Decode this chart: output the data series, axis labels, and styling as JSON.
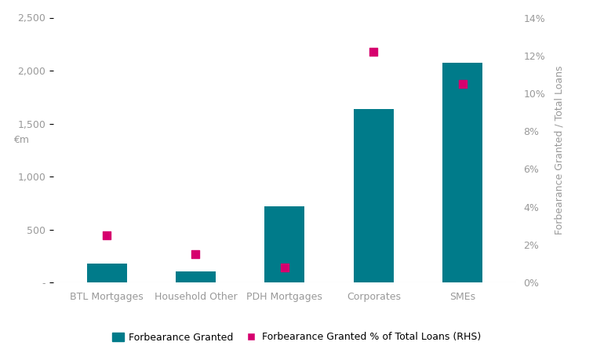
{
  "categories": [
    "BTL Mortgages",
    "Household Other",
    "PDH Mortgages",
    "Corporates",
    "SMEs"
  ],
  "bar_values": [
    175,
    105,
    720,
    1640,
    2075
  ],
  "dot_values": [
    0.025,
    0.015,
    0.008,
    0.122,
    0.105
  ],
  "bar_color": "#007b8a",
  "dot_color": "#d6006e",
  "ylabel_left": "€m",
  "ylabel_right": "Forbearance Granted / Total Loans",
  "ylim_left": [
    0,
    2500
  ],
  "ylim_right": [
    0,
    0.14
  ],
  "yticks_left": [
    0,
    500,
    1000,
    1500,
    2000,
    2500
  ],
  "ytick_labels_left": [
    "-",
    "500",
    "1,000",
    "1,500",
    "2,000",
    "2,500"
  ],
  "yticks_right": [
    0,
    0.02,
    0.04,
    0.06,
    0.08,
    0.1,
    0.12,
    0.14
  ],
  "legend_labels": [
    "Forbearance Granted",
    "Forbearance Granted % of Total Loans (RHS)"
  ],
  "background_color": "#ffffff",
  "grid_color": "#cccccc",
  "tick_color": "#999999",
  "label_fontsize": 9,
  "tick_fontsize": 9,
  "bar_width": 0.45
}
